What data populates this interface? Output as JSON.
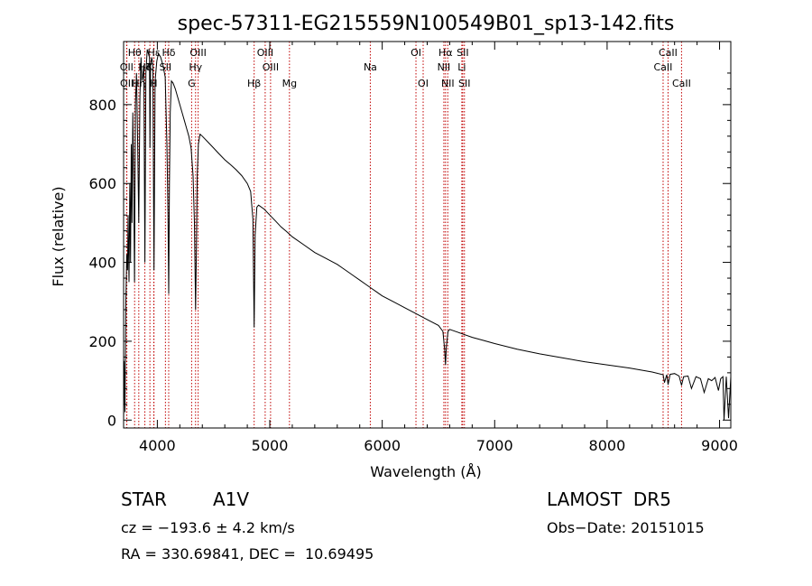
{
  "chart_data": {
    "type": "line",
    "title": "spec-57311-EG215559N100549B01_sp13-142.fits",
    "xlabel": "Wavelength (Å)",
    "ylabel": "Flux (relative)",
    "xlim": [
      3700,
      9100
    ],
    "ylim": [
      -20,
      960
    ],
    "xticks": [
      4000,
      5000,
      6000,
      7000,
      8000,
      9000
    ],
    "yticks": [
      0,
      200,
      400,
      600,
      800
    ],
    "series": [
      {
        "values": [
          [
            3700,
            0
          ],
          [
            3705,
            150
          ],
          [
            3712,
            20
          ],
          [
            3720,
            300
          ],
          [
            3728,
            420
          ],
          [
            3735,
            380
          ],
          [
            3740,
            520
          ],
          [
            3748,
            350
          ],
          [
            3755,
            600
          ],
          [
            3762,
            400
          ],
          [
            3768,
            700
          ],
          [
            3775,
            500
          ],
          [
            3782,
            780
          ],
          [
            3790,
            600
          ],
          [
            3797,
            350
          ],
          [
            3805,
            800
          ],
          [
            3815,
            880
          ],
          [
            3825,
            700
          ],
          [
            3835,
            500
          ],
          [
            3845,
            820
          ],
          [
            3855,
            920
          ],
          [
            3862,
            860
          ],
          [
            3870,
            870
          ],
          [
            3880,
            900
          ],
          [
            3889,
            400
          ],
          [
            3898,
            880
          ],
          [
            3910,
            940
          ],
          [
            3920,
            930
          ],
          [
            3930,
            920
          ],
          [
            3934,
            690
          ],
          [
            3940,
            900
          ],
          [
            3950,
            920
          ],
          [
            3960,
            900
          ],
          [
            3970,
            380
          ],
          [
            3980,
            860
          ],
          [
            3995,
            910
          ],
          [
            4010,
            930
          ],
          [
            4030,
            920
          ],
          [
            4050,
            900
          ],
          [
            4070,
            870
          ],
          [
            4085,
            700
          ],
          [
            4095,
            520
          ],
          [
            4101,
            320
          ],
          [
            4108,
            600
          ],
          [
            4115,
            780
          ],
          [
            4125,
            860
          ],
          [
            4140,
            855
          ],
          [
            4160,
            840
          ],
          [
            4180,
            820
          ],
          [
            4200,
            800
          ],
          [
            4220,
            780
          ],
          [
            4240,
            760
          ],
          [
            4260,
            740
          ],
          [
            4280,
            720
          ],
          [
            4300,
            690
          ],
          [
            4318,
            620
          ],
          [
            4330,
            500
          ],
          [
            4340,
            280
          ],
          [
            4348,
            450
          ],
          [
            4355,
            620
          ],
          [
            4365,
            700
          ],
          [
            4380,
            725
          ],
          [
            4400,
            720
          ],
          [
            4450,
            705
          ],
          [
            4500,
            690
          ],
          [
            4550,
            675
          ],
          [
            4600,
            660
          ],
          [
            4650,
            648
          ],
          [
            4700,
            635
          ],
          [
            4750,
            620
          ],
          [
            4800,
            600
          ],
          [
            4830,
            580
          ],
          [
            4850,
            510
          ],
          [
            4861,
            235
          ],
          [
            4870,
            470
          ],
          [
            4885,
            540
          ],
          [
            4900,
            545
          ],
          [
            4950,
            535
          ],
          [
            5000,
            520
          ],
          [
            5050,
            505
          ],
          [
            5100,
            490
          ],
          [
            5150,
            478
          ],
          [
            5200,
            465
          ],
          [
            5300,
            445
          ],
          [
            5400,
            425
          ],
          [
            5500,
            410
          ],
          [
            5600,
            395
          ],
          [
            5650,
            385
          ],
          [
            5700,
            375
          ],
          [
            5750,
            365
          ],
          [
            5800,
            355
          ],
          [
            5850,
            345
          ],
          [
            5900,
            335
          ],
          [
            5950,
            325
          ],
          [
            6000,
            315
          ],
          [
            6100,
            300
          ],
          [
            6200,
            285
          ],
          [
            6300,
            270
          ],
          [
            6400,
            255
          ],
          [
            6500,
            240
          ],
          [
            6540,
            225
          ],
          [
            6555,
            180
          ],
          [
            6563,
            140
          ],
          [
            6570,
            185
          ],
          [
            6585,
            225
          ],
          [
            6600,
            230
          ],
          [
            6700,
            220
          ],
          [
            6800,
            210
          ],
          [
            6900,
            202
          ],
          [
            7000,
            194
          ],
          [
            7200,
            180
          ],
          [
            7400,
            168
          ],
          [
            7600,
            158
          ],
          [
            7800,
            148
          ],
          [
            8000,
            140
          ],
          [
            8200,
            132
          ],
          [
            8400,
            122
          ],
          [
            8498,
            115
          ],
          [
            8510,
            95
          ],
          [
            8530,
            115
          ],
          [
            8542,
            90
          ],
          [
            8560,
            116
          ],
          [
            8600,
            118
          ],
          [
            8640,
            112
          ],
          [
            8662,
            88
          ],
          [
            8680,
            110
          ],
          [
            8720,
            112
          ],
          [
            8750,
            80
          ],
          [
            8790,
            110
          ],
          [
            8830,
            105
          ],
          [
            8863,
            70
          ],
          [
            8900,
            105
          ],
          [
            8930,
            100
          ],
          [
            8960,
            108
          ],
          [
            8990,
            75
          ],
          [
            9010,
            105
          ],
          [
            9030,
            110
          ],
          [
            9040,
            0
          ],
          [
            9060,
            110
          ],
          [
            9080,
            5
          ],
          [
            9100,
            110
          ]
        ]
      }
    ],
    "lines": [
      {
        "label": "Hβ",
        "wave": 4861,
        "row": 3
      },
      {
        "label": "Hα",
        "wave": 6563,
        "row": 1
      },
      {
        "label": "Hγ",
        "wave": 4340,
        "row": 2
      },
      {
        "label": "Hδ",
        "wave": 4101,
        "row": 1
      },
      {
        "label": "Hε",
        "wave": 3970,
        "row": 1
      },
      {
        "label": "Hθ",
        "wave": 3798,
        "row": 1
      },
      {
        "label": "Hη",
        "wave": 3835,
        "row": 3
      },
      {
        "label": "Hζ",
        "wave": 3889,
        "row": 2
      },
      {
        "label": "OII",
        "wave": 3727,
        "row": 2
      },
      {
        "label": "OII",
        "wave": 3729,
        "row": 3
      },
      {
        "label": "SII",
        "wave": 4072,
        "row": 2
      },
      {
        "label": "H",
        "wave": 3968,
        "row": 3
      },
      {
        "label": "K",
        "wave": 3934,
        "row": 2
      },
      {
        "label": "OIII",
        "wave": 4363,
        "row": 1
      },
      {
        "label": "G",
        "wave": 4305,
        "row": 3
      },
      {
        "label": "OIII",
        "wave": 4959,
        "row": 1
      },
      {
        "label": "OIII",
        "wave": 5007,
        "row": 2
      },
      {
        "label": "Mg",
        "wave": 5175,
        "row": 3
      },
      {
        "label": "Na",
        "wave": 5894,
        "row": 2
      },
      {
        "label": "OI",
        "wave": 6300,
        "row": 1
      },
      {
        "label": "OI",
        "wave": 6364,
        "row": 3
      },
      {
        "label": "NII",
        "wave": 6548,
        "row": 2
      },
      {
        "label": "NII",
        "wave": 6583,
        "row": 3
      },
      {
        "label": "SII",
        "wave": 6716,
        "row": 1
      },
      {
        "label": "Li",
        "wave": 6708,
        "row": 2
      },
      {
        "label": "SII",
        "wave": 6731,
        "row": 3
      },
      {
        "label": "CaII",
        "wave": 8498,
        "row": 2
      },
      {
        "label": "CaII",
        "wave": 8542,
        "row": 1
      },
      {
        "label": "CaII",
        "wave": 8662,
        "row": 3
      }
    ]
  },
  "info": {
    "class": "STAR",
    "subclass": "A1V",
    "survey": "LAMOST  DR5",
    "cz": "cz = −193.6 ± 4.2 km/s",
    "obs_date": "Obs−Date: 20151015",
    "coords": "RA = 330.69841, DEC =  10.69495"
  },
  "colors": {
    "spectrum": "#000000",
    "line_marker": "#c00000"
  }
}
